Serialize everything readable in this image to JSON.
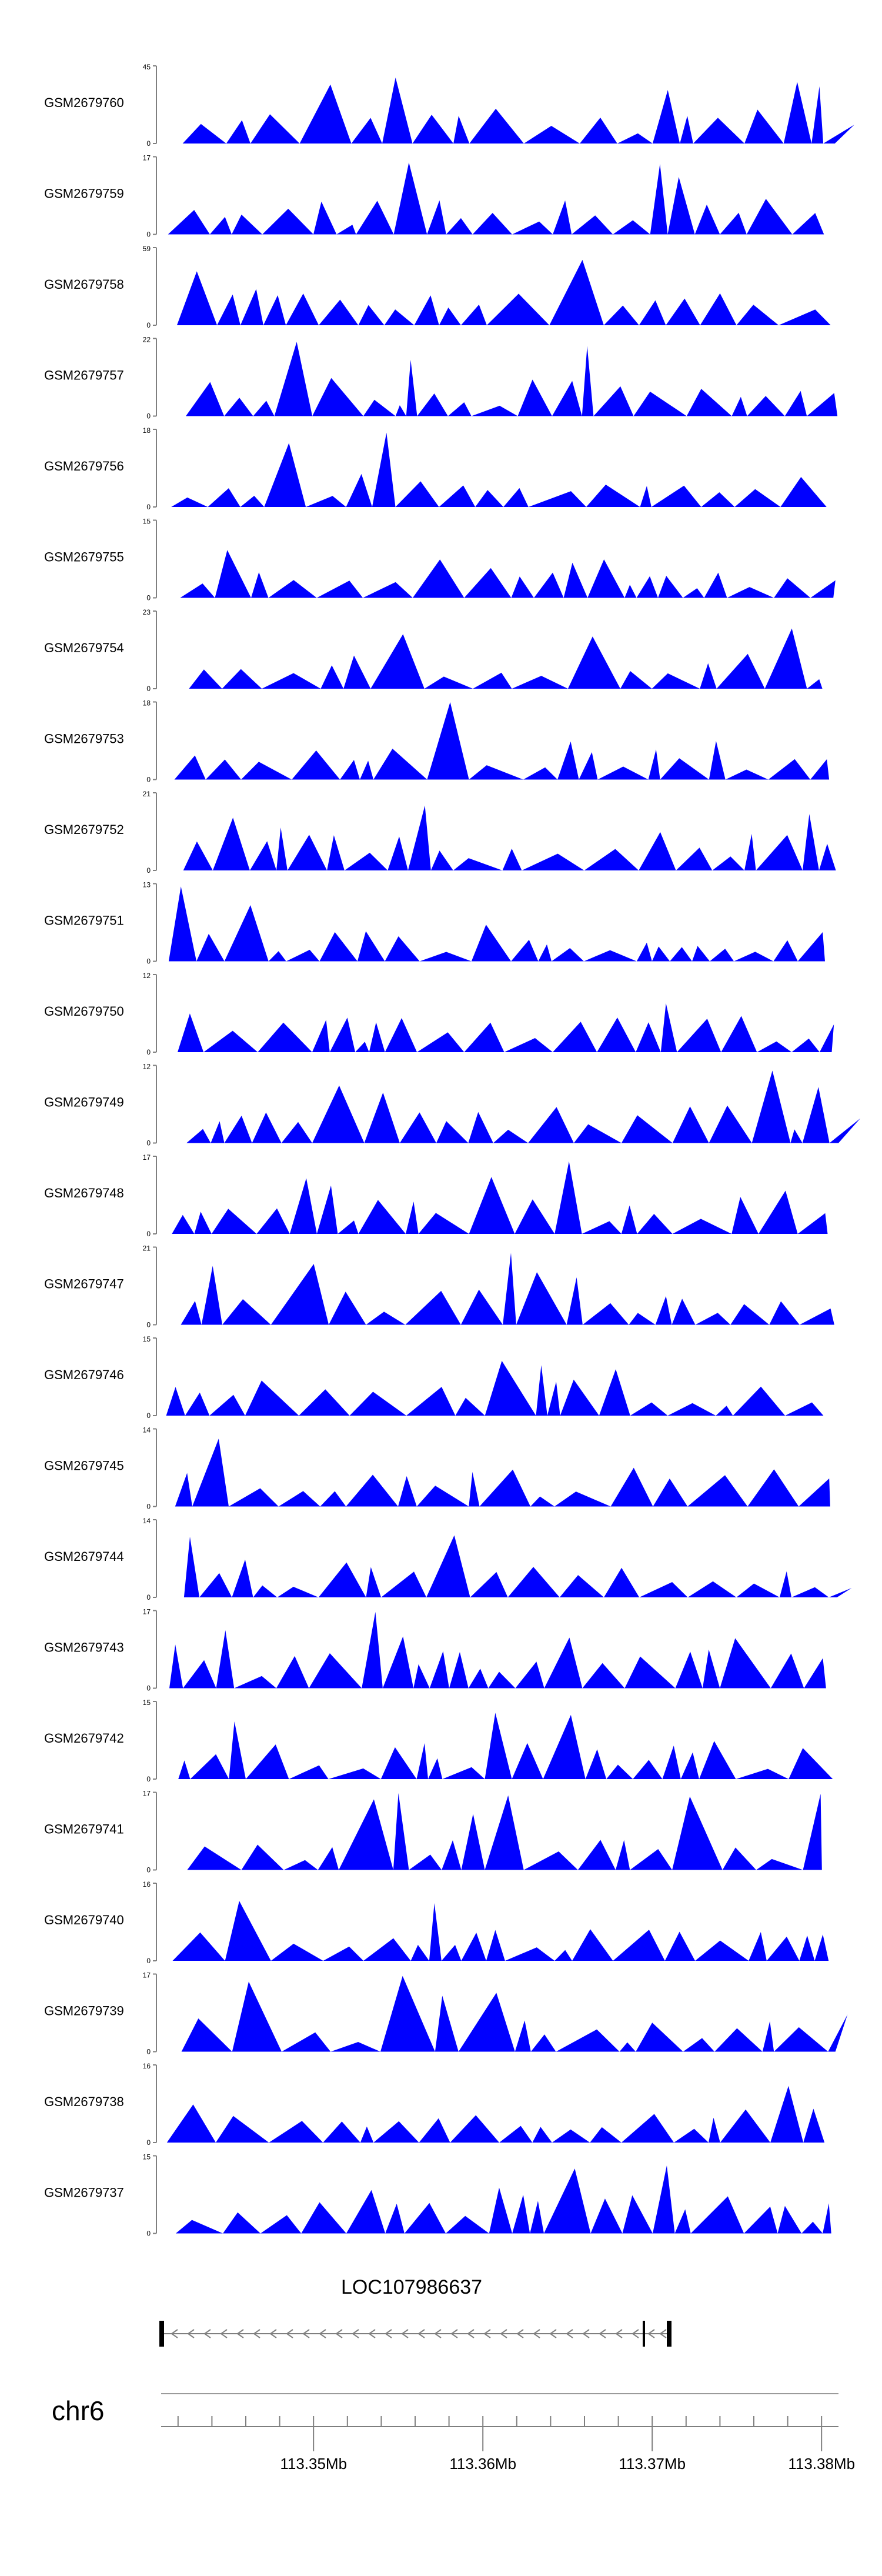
{
  "chart_data": {
    "type": "area",
    "title": "",
    "color": "#0000ff",
    "tracks": [
      {
        "name": "GSM2679760",
        "ymax": "45",
        "ymin": "0"
      },
      {
        "name": "GSM2679759",
        "ymax": "17",
        "ymin": "0"
      },
      {
        "name": "GSM2679758",
        "ymax": "59",
        "ymin": "0"
      },
      {
        "name": "GSM2679757",
        "ymax": "22",
        "ymin": "0"
      },
      {
        "name": "GSM2679756",
        "ymax": "18",
        "ymin": "0"
      },
      {
        "name": "GSM2679755",
        "ymax": "15",
        "ymin": "0"
      },
      {
        "name": "GSM2679754",
        "ymax": "23",
        "ymin": "0"
      },
      {
        "name": "GSM2679753",
        "ymax": "18",
        "ymin": "0"
      },
      {
        "name": "GSM2679752",
        "ymax": "21",
        "ymin": "0"
      },
      {
        "name": "GSM2679751",
        "ymax": "13",
        "ymin": "0"
      },
      {
        "name": "GSM2679750",
        "ymax": "12",
        "ymin": "0"
      },
      {
        "name": "GSM2679749",
        "ymax": "12",
        "ymin": "0"
      },
      {
        "name": "GSM2679748",
        "ymax": "17",
        "ymin": "0"
      },
      {
        "name": "GSM2679747",
        "ymax": "21",
        "ymin": "0"
      },
      {
        "name": "GSM2679746",
        "ymax": "15",
        "ymin": "0"
      },
      {
        "name": "GSM2679745",
        "ymax": "14",
        "ymin": "0"
      },
      {
        "name": "GSM2679744",
        "ymax": "14",
        "ymin": "0"
      },
      {
        "name": "GSM2679743",
        "ymax": "17",
        "ymin": "0"
      },
      {
        "name": "GSM2679742",
        "ymax": "15",
        "ymin": "0"
      },
      {
        "name": "GSM2679741",
        "ymax": "17",
        "ymin": "0"
      },
      {
        "name": "GSM2679740",
        "ymax": "16",
        "ymin": "0"
      },
      {
        "name": "GSM2679739",
        "ymax": "17",
        "ymin": "0"
      },
      {
        "name": "GSM2679738",
        "ymax": "16",
        "ymin": "0"
      },
      {
        "name": "GSM2679737",
        "ymax": "15",
        "ymin": "0"
      }
    ],
    "gene": {
      "name": "LOC107986637",
      "strand": "-"
    },
    "chromosome": "chr6",
    "x_range_mb": [
      113.341,
      113.381
    ],
    "gene_range_mb": [
      113.341,
      113.371
    ],
    "x_ticks": [
      "113.35Mb",
      "113.36Mb",
      "113.37Mb",
      "113.38Mb"
    ],
    "x_tick_values": [
      113.35,
      113.36,
      113.37,
      113.38
    ],
    "minor_tick_step_mb": 0.002
  }
}
